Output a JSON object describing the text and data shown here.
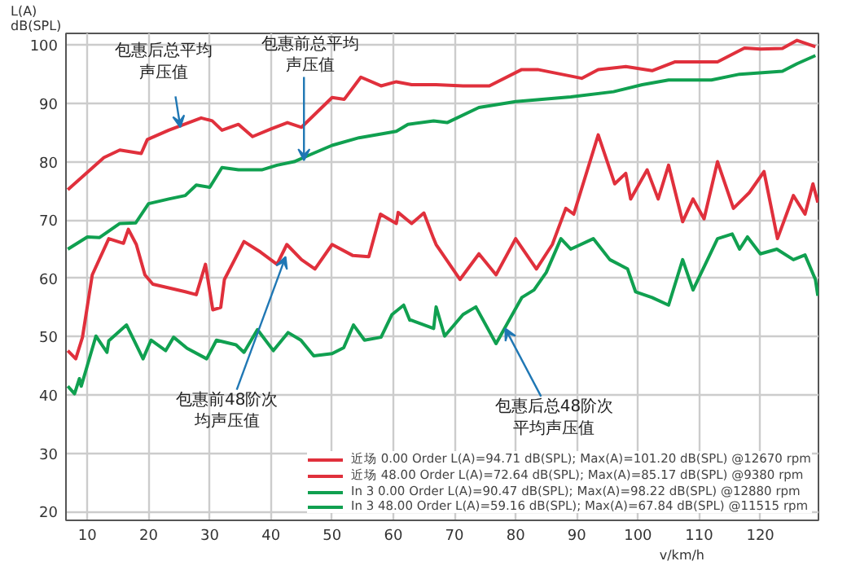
{
  "chart_data": {
    "type": "line",
    "ylabel": "L(A)\ndB(SPL)",
    "xlabel": "v/km/h",
    "xlim": [
      6.5,
      129.5
    ],
    "ylim": [
      18.5,
      102
    ],
    "xticks": [
      10,
      20,
      30,
      40,
      50,
      60,
      70,
      80,
      90,
      100,
      110,
      120
    ],
    "yticks": [
      20,
      30,
      40,
      50,
      60,
      70,
      80,
      90,
      100
    ],
    "grid": true,
    "legend": "bottom right",
    "line_style": "solid",
    "marker": "none",
    "series": [
      {
        "name": "近场 0.00 Order L(A)=94.71 dB(SPL); Max(A)=101.20 dB(SPL) @12670 rpm",
        "color": "#e0303c",
        "x": [
          6.8,
          12.7,
          15.3,
          18.8,
          19.8,
          23.3,
          28.6,
          30.4,
          32,
          34.7,
          37,
          40,
          42.7,
          45,
          50,
          52,
          54.7,
          58,
          60.5,
          63,
          67,
          71.4,
          75.7,
          81,
          83.6,
          90.8,
          93.5,
          98,
          102.3,
          106,
          113,
          117.4,
          120,
          123.6,
          126,
          129
        ],
        "values": [
          75.2,
          80.7,
          82,
          81.4,
          83.8,
          85.4,
          87.5,
          87,
          85.4,
          86.4,
          84.3,
          85.6,
          86.7,
          85.9,
          91,
          90.7,
          94.5,
          93,
          93.7,
          93.2,
          93.2,
          93,
          93,
          95.8,
          95.8,
          94.3,
          95.8,
          96.3,
          95.6,
          97.1,
          97.1,
          99.5,
          99.3,
          99.4,
          100.8,
          99.7
        ]
      },
      {
        "name": "近场 48.00 Order L(A)=72.64 dB(SPL); Max(A)=85.17 dB(SPL) @9380 rpm",
        "color": "#e0303c",
        "x": [
          6.8,
          8.1,
          9.2,
          10.8,
          13.5,
          15.9,
          16.7,
          18,
          19.4,
          20.7,
          26,
          27.8,
          29.3,
          30.5,
          31.8,
          32.4,
          35.6,
          38.3,
          41,
          42.6,
          45,
          47.2,
          50,
          53.4,
          56,
          57.9,
          60.5,
          60.8,
          63,
          65,
          66.6,
          67,
          70.9,
          74,
          76.8,
          80,
          83.4,
          86,
          88.2,
          89.5,
          93.5,
          96.2,
          98,
          98.8,
          101.5,
          103.3,
          105,
          107.3,
          109,
          110.8,
          113,
          115.6,
          118.2,
          120.6,
          122.8,
          125.4,
          127.3,
          128.6,
          129.4
        ],
        "values": [
          47.6,
          46.2,
          49.9,
          60.6,
          66.8,
          66,
          68.4,
          65.8,
          60.6,
          59,
          57.7,
          57.2,
          62.4,
          54.6,
          55,
          59.8,
          66.3,
          64.5,
          62.4,
          65.8,
          63.2,
          61.6,
          65.8,
          63.9,
          63.7,
          71,
          69.4,
          71.3,
          69.4,
          71.2,
          66.8,
          65.8,
          59.8,
          64.2,
          60.6,
          66.8,
          61.6,
          65.8,
          72,
          71,
          84.6,
          76.2,
          78,
          73.6,
          78.6,
          73.6,
          79.4,
          69.7,
          73.6,
          70.2,
          80,
          72,
          74.7,
          78.3,
          66.8,
          74.2,
          71,
          76.2,
          73
        ]
      },
      {
        "name": "In 3 0.00 Order L(A)=90.47 dB(SPL); Max(A)=98.22 dB(SPL) @12880 rpm",
        "color": "#10a050",
        "x": [
          6.8,
          10,
          12,
          15.3,
          17.9,
          20,
          23.3,
          26,
          27.8,
          30,
          32,
          34.7,
          38.5,
          41,
          43.8,
          46.4,
          50,
          54.4,
          60.5,
          62.4,
          66.6,
          68.8,
          74,
          80,
          89,
          96,
          100.7,
          105,
          112,
          116.6,
          123.6,
          126,
          129
        ],
        "values": [
          65,
          67.1,
          67,
          69.4,
          69.5,
          72.8,
          73.6,
          74.2,
          76,
          75.6,
          79,
          78.6,
          78.6,
          79.4,
          80,
          81.2,
          82.8,
          84.1,
          85.2,
          86.4,
          87,
          86.7,
          89.3,
          90.3,
          91.1,
          92,
          93.2,
          94,
          94,
          95,
          95.5,
          96.8,
          98.2
        ]
      },
      {
        "name": "In 3 48.00 Order L(A)=59.16 dB(SPL); Max(A)=67.84 dB(SPL) @11515 rpm",
        "color": "#10a050",
        "x": [
          6.8,
          7.9,
          8.7,
          9,
          11.4,
          13.2,
          13.5,
          16.4,
          19.1,
          20.4,
          22.8,
          24.1,
          26.3,
          29.5,
          31.1,
          34.3,
          35.6,
          37.8,
          40.4,
          42.8,
          44.9,
          47,
          50,
          51.9,
          53.5,
          55.3,
          58,
          59.8,
          61.7,
          62.7,
          63,
          66.6,
          67,
          68.4,
          71.4,
          73.5,
          76.8,
          81,
          83,
          85,
          87.4,
          89,
          92.7,
          95.4,
          98.3,
          99.6,
          102.3,
          105,
          107.3,
          109,
          113,
          115.4,
          116.6,
          117.9,
          120,
          122.7,
          125.4,
          127.3,
          129,
          129.4
        ],
        "values": [
          41.5,
          40.2,
          42.8,
          41.5,
          50.1,
          47.3,
          49.3,
          52,
          46.2,
          49.4,
          47.6,
          49.9,
          48,
          46.2,
          49.4,
          48.6,
          47.3,
          51.2,
          47.6,
          50.7,
          49.4,
          46.7,
          47.1,
          48.1,
          52,
          49.4,
          49.9,
          53.8,
          55.4,
          52.8,
          52.8,
          51.4,
          55.1,
          50.1,
          53.8,
          55.1,
          48.8,
          56.7,
          58,
          61,
          66.8,
          65,
          66.8,
          63.2,
          61.6,
          57.7,
          56.7,
          55.4,
          63.2,
          58,
          66.8,
          67.6,
          65,
          67.1,
          64.2,
          65,
          63.2,
          64,
          59.8,
          57
        ]
      }
    ],
    "annotations": [
      {
        "text": "包惠后总平均声压值",
        "x": 25.2,
        "y": 85.9
      },
      {
        "text": "包惠前总平均声压值",
        "x": 45.4,
        "y": 80.2
      },
      {
        "text": "包惠前48阶次均声压值",
        "x": 42.4,
        "y": 63.7
      },
      {
        "text": "包惠后总48阶次平均声压值",
        "x": 78.3,
        "y": 51.4
      }
    ]
  }
}
